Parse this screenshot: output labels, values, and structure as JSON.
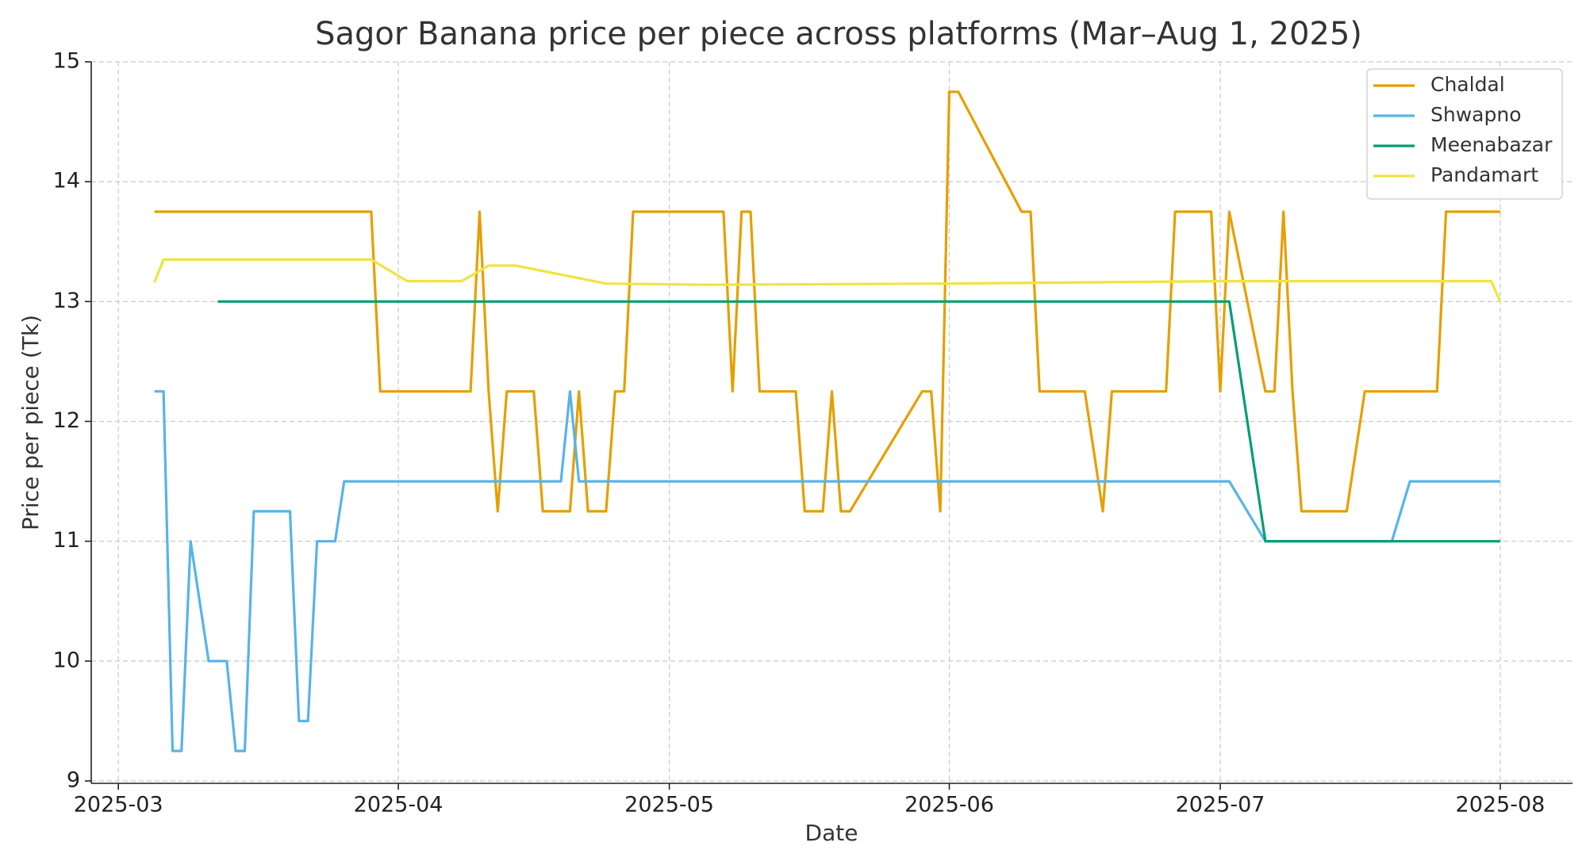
{
  "chart_data": {
    "type": "line",
    "title": "Sagor Banana price per piece across platforms (Mar–Aug 1, 2025)",
    "x_label": "Date",
    "y_label": "Price per piece (Tk)",
    "xlim": [
      "2025-02-26",
      "2025-08-09"
    ],
    "xticks": [
      {
        "value": "2025-03-01",
        "label": "2025-03"
      },
      {
        "value": "2025-04-01",
        "label": "2025-04"
      },
      {
        "value": "2025-05-01",
        "label": "2025-05"
      },
      {
        "value": "2025-06-01",
        "label": "2025-06"
      },
      {
        "value": "2025-07-01",
        "label": "2025-07"
      },
      {
        "value": "2025-08-01",
        "label": "2025-08"
      }
    ],
    "ylim": [
      8.98,
      15
    ],
    "yticks": [
      9,
      10,
      11,
      12,
      13,
      14,
      15
    ],
    "grid": true,
    "legend": "upper right",
    "series": [
      {
        "name": "Chaldal",
        "color": "#E69F00",
        "x": [
          "2025-03-05",
          "2025-03-29",
          "2025-03-30",
          "2025-04-09",
          "2025-04-10",
          "2025-04-11",
          "2025-04-12",
          "2025-04-13",
          "2025-04-16",
          "2025-04-17",
          "2025-04-20",
          "2025-04-21",
          "2025-04-22",
          "2025-04-24",
          "2025-04-25",
          "2025-04-26",
          "2025-04-27",
          "2025-05-07",
          "2025-05-08",
          "2025-05-09",
          "2025-05-10",
          "2025-05-11",
          "2025-05-15",
          "2025-05-16",
          "2025-05-18",
          "2025-05-19",
          "2025-05-20",
          "2025-05-21",
          "2025-05-29",
          "2025-05-30",
          "2025-05-31",
          "2025-06-01",
          "2025-06-02",
          "2025-06-09",
          "2025-06-10",
          "2025-06-11",
          "2025-06-16",
          "2025-06-18",
          "2025-06-19",
          "2025-06-25",
          "2025-06-26",
          "2025-06-30",
          "2025-07-01",
          "2025-07-02",
          "2025-07-06",
          "2025-07-07",
          "2025-07-08",
          "2025-07-09",
          "2025-07-10",
          "2025-07-15",
          "2025-07-17",
          "2025-07-25",
          "2025-07-26",
          "2025-08-01"
        ],
        "values": [
          13.75,
          13.75,
          12.25,
          12.25,
          13.75,
          12.25,
          11.25,
          12.25,
          12.25,
          11.25,
          11.25,
          12.25,
          11.25,
          11.25,
          12.25,
          12.25,
          13.75,
          13.75,
          12.25,
          13.75,
          13.75,
          12.25,
          12.25,
          11.25,
          11.25,
          12.25,
          11.25,
          11.25,
          12.25,
          12.25,
          11.25,
          14.75,
          14.75,
          13.75,
          13.75,
          12.25,
          12.25,
          11.25,
          12.25,
          12.25,
          13.75,
          13.75,
          12.25,
          13.75,
          12.25,
          12.25,
          13.75,
          12.25,
          11.25,
          11.25,
          12.25,
          12.25,
          13.75,
          13.75
        ]
      },
      {
        "name": "Shwapno",
        "color": "#56B4E9",
        "x": [
          "2025-03-05",
          "2025-03-06",
          "2025-03-07",
          "2025-03-08",
          "2025-03-09",
          "2025-03-11",
          "2025-03-13",
          "2025-03-14",
          "2025-03-15",
          "2025-03-16",
          "2025-03-20",
          "2025-03-21",
          "2025-03-22",
          "2025-03-23",
          "2025-03-25",
          "2025-03-26",
          "2025-04-19",
          "2025-04-20",
          "2025-04-21",
          "2025-07-02",
          "2025-07-06",
          "2025-07-20",
          "2025-07-22",
          "2025-08-01"
        ],
        "values": [
          12.25,
          12.25,
          9.25,
          9.25,
          11,
          10,
          10,
          9.25,
          9.25,
          11.25,
          11.25,
          9.5,
          9.5,
          11,
          11,
          11.5,
          11.5,
          12.25,
          11.5,
          11.5,
          11,
          11,
          11.5,
          11.5
        ]
      },
      {
        "name": "Meenabazar",
        "color": "#009E73",
        "x": [
          "2025-03-12",
          "2025-07-02",
          "2025-07-06",
          "2025-08-01"
        ],
        "values": [
          13,
          13,
          11,
          11
        ]
      },
      {
        "name": "Pandamart",
        "color": "#F0E442",
        "x": [
          "2025-03-05",
          "2025-03-06",
          "2025-03-29",
          "2025-04-02",
          "2025-04-08",
          "2025-04-11",
          "2025-04-14",
          "2025-04-24",
          "2025-05-05",
          "2025-06-01",
          "2025-07-01",
          "2025-07-31",
          "2025-08-01"
        ],
        "values": [
          13.16,
          13.35,
          13.35,
          13.17,
          13.17,
          13.3,
          13.3,
          13.15,
          13.14,
          13.15,
          13.17,
          13.17,
          13.0
        ]
      }
    ]
  }
}
